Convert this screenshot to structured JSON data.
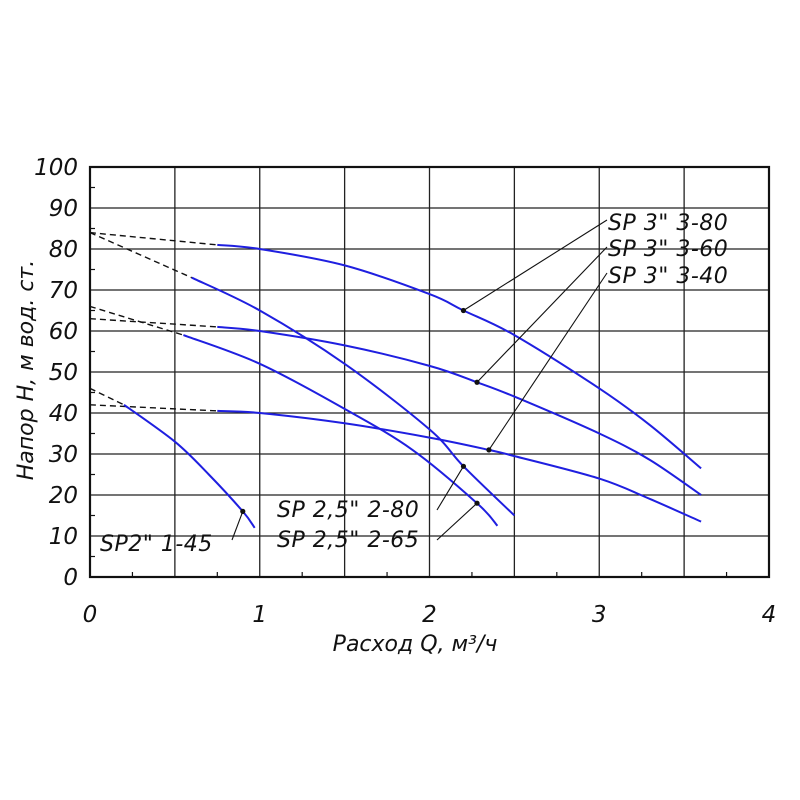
{
  "chart_data": {
    "type": "line",
    "xlabel": "Расход Q, м³/ч",
    "ylabel": "Напор H, м вод. ст.",
    "xlim": [
      0,
      4
    ],
    "ylim": [
      0,
      100
    ],
    "x_ticks": [
      "0",
      "1",
      "2",
      "3",
      "4"
    ],
    "y_ticks": [
      "0",
      "10",
      "20",
      "30",
      "40",
      "50",
      "60",
      "70",
      "80",
      "90",
      "100"
    ],
    "grid": true,
    "series": [
      {
        "name": "SP 3\" 3-80",
        "dashed_x": [
          0,
          0.75
        ],
        "dashed_y": [
          84,
          81
        ],
        "x": [
          0.75,
          1.0,
          1.5,
          2.0,
          2.2,
          2.5,
          3.0,
          3.3,
          3.6
        ],
        "y": [
          81,
          80,
          76,
          69,
          65,
          59,
          46,
          37,
          26.5
        ],
        "marker": [
          2.2,
          65
        ]
      },
      {
        "name": "SP 3\" 3-60",
        "dashed_x": [
          0,
          0.75
        ],
        "dashed_y": [
          63,
          61
        ],
        "x": [
          0.75,
          1.0,
          1.5,
          2.0,
          2.28,
          2.5,
          3.0,
          3.3,
          3.6
        ],
        "y": [
          61,
          60,
          56.5,
          51.5,
          47.5,
          44,
          35,
          28.5,
          20
        ],
        "marker": [
          2.28,
          47.5
        ]
      },
      {
        "name": "SP 3\" 3-40",
        "dashed_x": [
          0,
          0.75
        ],
        "dashed_y": [
          42,
          40.5
        ],
        "x": [
          0.75,
          1.0,
          1.5,
          2.0,
          2.35,
          2.5,
          3.0,
          3.3,
          3.6
        ],
        "y": [
          40.5,
          40,
          37.5,
          34,
          31,
          29.5,
          24,
          19,
          13.5
        ],
        "marker": [
          2.35,
          31
        ]
      },
      {
        "name": "SP 2,5\" 2-80",
        "dashed_x": [
          0,
          0.6
        ],
        "dashed_y": [
          84,
          73
        ],
        "x": [
          0.6,
          1.0,
          1.5,
          2.0,
          2.2,
          2.5
        ],
        "y": [
          73,
          65,
          52,
          36,
          27,
          15
        ],
        "marker": [
          2.2,
          27
        ]
      },
      {
        "name": "SP 2,5\" 2-65",
        "dashed_x": [
          0,
          0.55
        ],
        "dashed_y": [
          66,
          59
        ],
        "x": [
          0.55,
          1.0,
          1.5,
          1.9,
          2.28,
          2.4
        ],
        "y": [
          59,
          52,
          41,
          31,
          18,
          12.5
        ],
        "marker": [
          2.28,
          18
        ]
      },
      {
        "name": "SP2\" 1-45",
        "dashed_x": [
          0,
          0.2
        ],
        "dashed_y": [
          46,
          42
        ],
        "x": [
          0.2,
          0.5,
          0.7,
          0.9,
          0.97
        ],
        "y": [
          42,
          33,
          25,
          16,
          12
        ],
        "marker": [
          0.9,
          16
        ]
      }
    ]
  }
}
